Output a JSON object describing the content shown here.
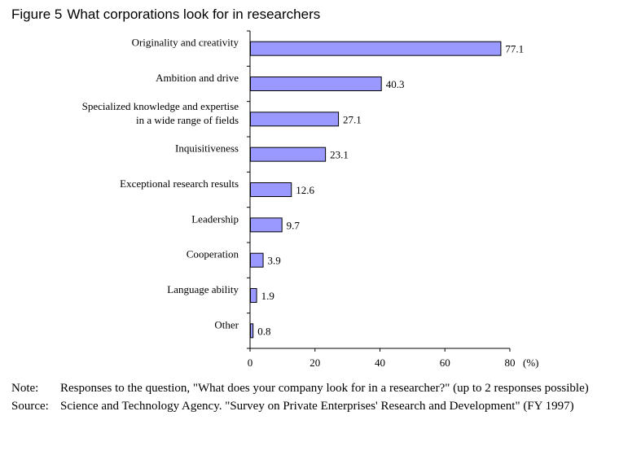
{
  "figure": {
    "number": "Figure 5",
    "title": "What corporations look for in researchers"
  },
  "chart_data": {
    "type": "bar",
    "orientation": "horizontal",
    "categories": [
      [
        "Originality and creativity"
      ],
      [
        "Ambition and drive"
      ],
      [
        "Specialized knowledge and expertise",
        "in a wide range of fields"
      ],
      [
        "Inquisitiveness"
      ],
      [
        "Exceptional research results"
      ],
      [
        "Leadership"
      ],
      [
        "Cooperation"
      ],
      [
        "Language ability"
      ],
      [
        "Other"
      ]
    ],
    "values": [
      77.1,
      40.3,
      27.1,
      23.1,
      12.6,
      9.7,
      3.9,
      1.9,
      0.8
    ],
    "value_labels": [
      "77.1",
      "40.3",
      "27.1",
      "23.1",
      "12.6",
      "9.7",
      "3.9",
      "1.9",
      "0.8"
    ],
    "xlim": [
      0,
      80
    ],
    "xticks": [
      0,
      20,
      40,
      60,
      80
    ],
    "xunit": "(%)",
    "grid": false,
    "bar_color": "#9999ff",
    "bar_edge_color": "#000000"
  },
  "notes": [
    {
      "label": "Note:",
      "text": "Responses to the question, \"What does your company look for in a researcher?\" (up to 2 responses possible)"
    },
    {
      "label": "Source:",
      "text": "Science and Technology Agency. \"Survey on Private Enterprises' Research and Development\" (FY 1997)"
    }
  ]
}
